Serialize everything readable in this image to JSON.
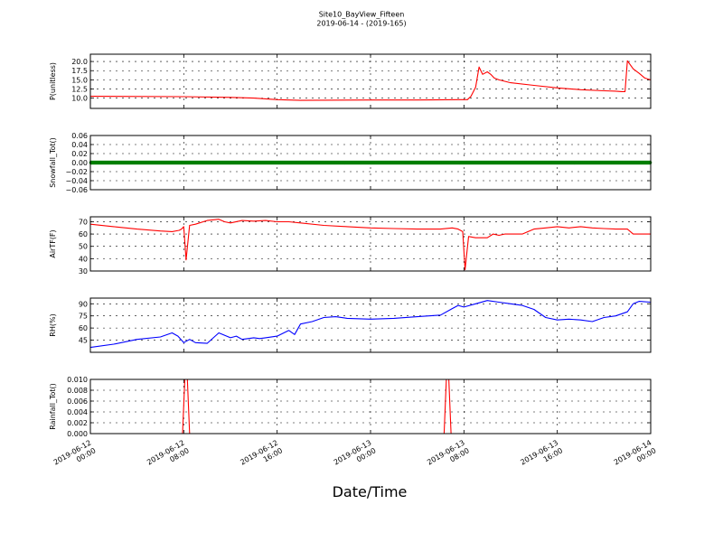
{
  "chart_data": {
    "type": "line",
    "title": "Site10_BayView_Fifteen",
    "subtitle": "2019-06-14 - (2019-165)",
    "xlabel": "Date/Time",
    "x_ticks": [
      {
        "t": 0,
        "l1": "2019-06-12",
        "l2": "00:00"
      },
      {
        "t": 8,
        "l1": "2019-06-12",
        "l2": "08:00"
      },
      {
        "t": 16,
        "l1": "2019-06-12",
        "l2": "16:00"
      },
      {
        "t": 24,
        "l1": "2019-06-13",
        "l2": "00:00"
      },
      {
        "t": 32,
        "l1": "2019-06-13",
        "l2": "08:00"
      },
      {
        "t": 40,
        "l1": "2019-06-13",
        "l2": "16:00"
      },
      {
        "t": 48,
        "l1": "2019-06-14",
        "l2": "00:00"
      }
    ],
    "xlim": [
      0,
      48
    ],
    "grid": true,
    "panels": [
      {
        "ylabel": "P(unitless)",
        "color": "#ff0000",
        "marker": "none",
        "ylim": [
          7.2,
          22.0
        ],
        "yticks": [
          10.0,
          12.5,
          15.0,
          17.5,
          20.0
        ],
        "ytick_labels": [
          "10.0",
          "12.5",
          "15.0",
          "17.5",
          "20.0"
        ],
        "x": [
          0,
          8,
          12,
          14,
          16,
          18,
          24,
          28,
          32,
          32.3,
          32.6,
          33.0,
          33.3,
          33.6,
          34.0,
          34.3,
          34.6,
          35.0,
          36,
          38,
          40,
          42,
          44,
          45,
          45.5,
          45.8,
          46.0,
          46.5,
          47,
          47.5,
          48
        ],
        "y": [
          10.5,
          10.4,
          10.2,
          10.0,
          9.6,
          9.4,
          9.5,
          9.5,
          9.6,
          9.6,
          10.5,
          13.0,
          18.5,
          16.5,
          17.2,
          16.5,
          15.5,
          15.0,
          14.2,
          13.5,
          12.8,
          12.3,
          12.0,
          11.9,
          11.8,
          11.8,
          20.2,
          18.0,
          16.8,
          15.5,
          15.0
        ]
      },
      {
        "ylabel": "Snowfall_Tot()",
        "color": "#007f00",
        "marker": "dot",
        "ylim": [
          -0.06,
          0.06
        ],
        "yticks": [
          -0.06,
          -0.04,
          -0.02,
          0.0,
          0.02,
          0.04,
          0.06
        ],
        "ytick_labels": [
          "−0.06",
          "−0.04",
          "−0.02",
          "0.00",
          "0.02",
          "0.04",
          "0.06"
        ],
        "x": [
          0,
          48
        ],
        "y": [
          0.0,
          0.0
        ]
      },
      {
        "ylabel": "AirTF(F)",
        "color": "#ff0000",
        "marker": "none",
        "ylim": [
          30,
          74
        ],
        "yticks": [
          30,
          40,
          50,
          60,
          70
        ],
        "ytick_labels": [
          "30",
          "40",
          "50",
          "60",
          "70"
        ],
        "x": [
          0,
          2,
          4,
          6,
          7,
          7.6,
          7.8,
          8.0,
          8.2,
          8.5,
          9,
          10,
          11,
          11.5,
          12,
          13,
          14,
          15,
          16,
          17,
          18,
          20,
          22,
          24,
          26,
          28,
          30,
          31,
          31.5,
          31.7,
          31.9,
          32.1,
          32.4,
          33,
          34,
          34.5,
          35,
          35.5,
          36,
          37,
          38,
          39,
          40,
          41,
          42,
          43,
          44,
          45,
          46,
          46.5,
          47,
          48
        ],
        "y": [
          68,
          66,
          64,
          62.5,
          62,
          63,
          64,
          66,
          39,
          67,
          68,
          71,
          72,
          70,
          69,
          71,
          70.5,
          71,
          70,
          70,
          69,
          67,
          66,
          65,
          64.5,
          64,
          64,
          65,
          64,
          63,
          62,
          31,
          58,
          57,
          57,
          60,
          59,
          60,
          60,
          60,
          64,
          65,
          66,
          65,
          66,
          65,
          64.5,
          64,
          64,
          60,
          60,
          60
        ]
      },
      {
        "ylabel": "RH(%)",
        "color": "#0000ff",
        "marker": "none",
        "ylim": [
          30,
          97
        ],
        "yticks": [
          45,
          60,
          75,
          90
        ],
        "ytick_labels": [
          "45",
          "60",
          "75",
          "90"
        ],
        "x": [
          0,
          2,
          4,
          6,
          7,
          7.5,
          8,
          8.5,
          9,
          10,
          11,
          12,
          12.5,
          13,
          14,
          14.5,
          15,
          16,
          17,
          17.5,
          18,
          19,
          20,
          21,
          22,
          24,
          26,
          28,
          30,
          31,
          31.5,
          32,
          33,
          34,
          35,
          36,
          37,
          38,
          39,
          40,
          41,
          42,
          43,
          44,
          45,
          46,
          46.5,
          47,
          48
        ],
        "y": [
          36,
          40,
          46,
          49,
          54,
          50,
          42,
          46,
          42,
          41,
          54,
          48,
          50,
          46,
          48,
          47,
          48,
          50,
          57,
          52,
          65,
          68,
          73,
          74,
          72,
          71,
          72,
          74,
          76,
          84,
          88,
          86,
          90,
          94,
          92,
          90,
          88,
          83,
          73,
          70,
          71,
          70,
          68,
          73,
          75,
          80,
          90,
          93,
          92
        ]
      },
      {
        "ylabel": "Rainfall_Tot()",
        "color": "#ff0000",
        "marker": "none",
        "ylim": [
          0,
          0.01
        ],
        "yticks": [
          0.0,
          0.002,
          0.004,
          0.006,
          0.008,
          0.01
        ],
        "ytick_labels": [
          "0.000",
          "0.002",
          "0.004",
          "0.006",
          "0.008",
          "0.010"
        ],
        "x": [
          0,
          7.9,
          8.1,
          8.3,
          8.5,
          30.3,
          30.5,
          30.7,
          30.9,
          48
        ],
        "y": [
          0,
          0,
          0.0105,
          0.0105,
          0,
          0,
          0.0105,
          0.0105,
          0,
          0
        ]
      }
    ]
  }
}
